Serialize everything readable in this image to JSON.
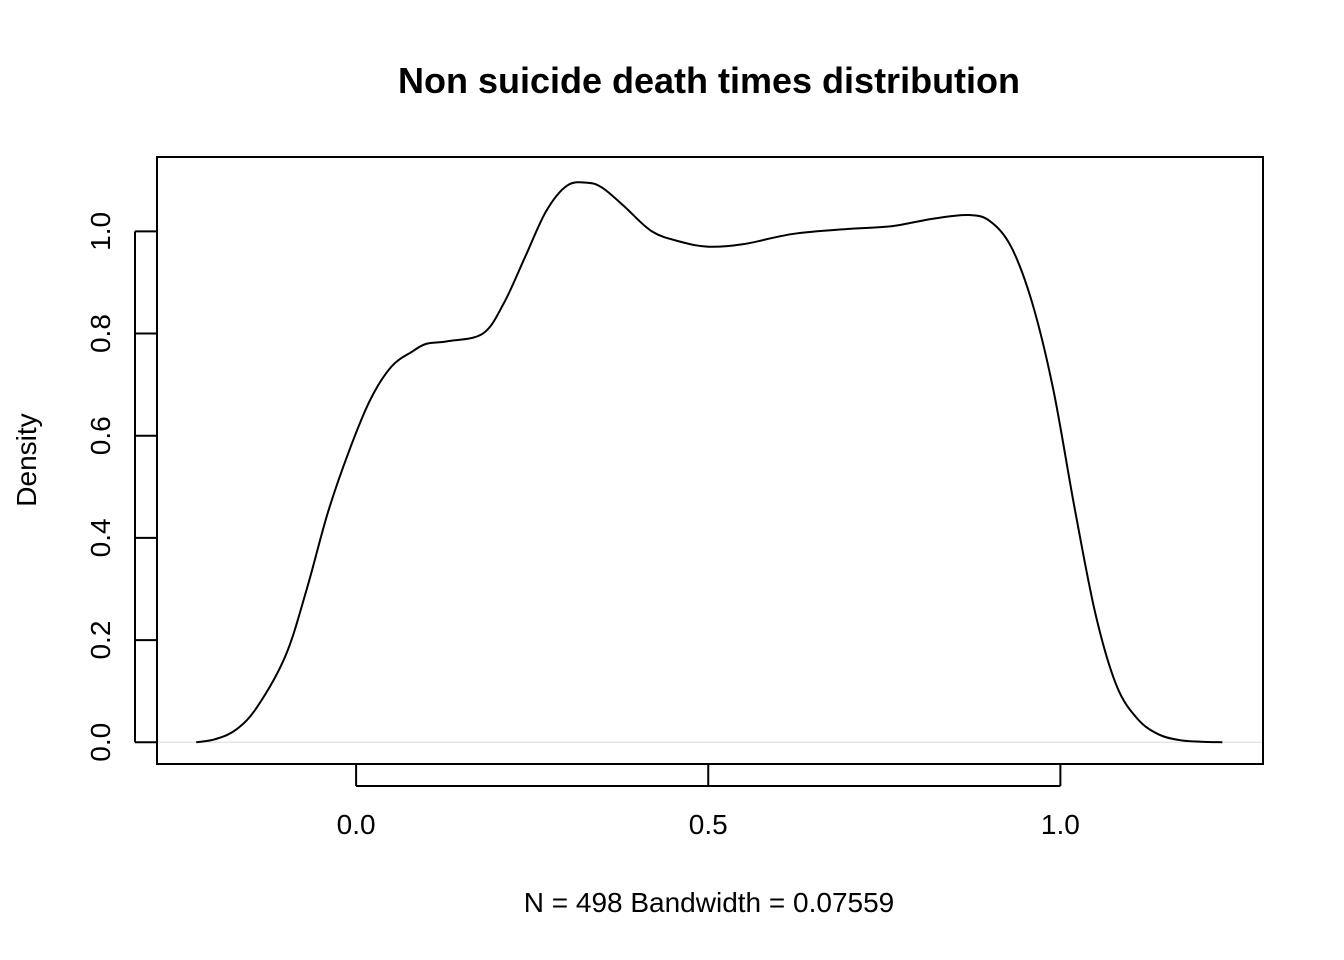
{
  "chart_data": {
    "type": "line",
    "title": "Non suicide death times distribution",
    "xlabel": "N = 498   Bandwidth = 0.07559",
    "ylabel": "Density",
    "xlim": [
      -0.2827,
      1.2877
    ],
    "ylim": [
      -0.0426,
      1.1456
    ],
    "xticks": [
      0.0,
      0.5,
      1.0
    ],
    "xtick_labels": [
      "0.0",
      "0.5",
      "1.0"
    ],
    "yticks": [
      0.0,
      0.2,
      0.4,
      0.6,
      0.8,
      1.0
    ],
    "ytick_labels": [
      "0.0",
      "0.2",
      "0.4",
      "0.6",
      "0.8",
      "1.0"
    ],
    "grid": false,
    "zero_line": true,
    "series": [
      {
        "x": [
          -0.227,
          -0.2,
          -0.17,
          -0.14,
          -0.1,
          -0.07,
          -0.04,
          -0.01,
          0.02,
          0.05,
          0.08,
          0.1,
          0.13,
          0.18,
          0.21,
          0.24,
          0.27,
          0.3,
          0.33,
          0.35,
          0.38,
          0.42,
          0.46,
          0.5,
          0.55,
          0.62,
          0.7,
          0.76,
          0.82,
          0.87,
          0.9,
          0.93,
          0.96,
          0.99,
          1.02,
          1.05,
          1.08,
          1.11,
          1.14,
          1.17,
          1.2,
          1.23
        ],
        "y": [
          0.0,
          0.006,
          0.025,
          0.07,
          0.17,
          0.3,
          0.45,
          0.57,
          0.67,
          0.735,
          0.765,
          0.78,
          0.785,
          0.8,
          0.86,
          0.95,
          1.04,
          1.09,
          1.095,
          1.085,
          1.05,
          1.0,
          0.98,
          0.97,
          0.975,
          0.995,
          1.005,
          1.01,
          1.025,
          1.032,
          1.02,
          0.97,
          0.86,
          0.69,
          0.46,
          0.25,
          0.11,
          0.045,
          0.015,
          0.004,
          0.001,
          0.0
        ]
      }
    ]
  }
}
